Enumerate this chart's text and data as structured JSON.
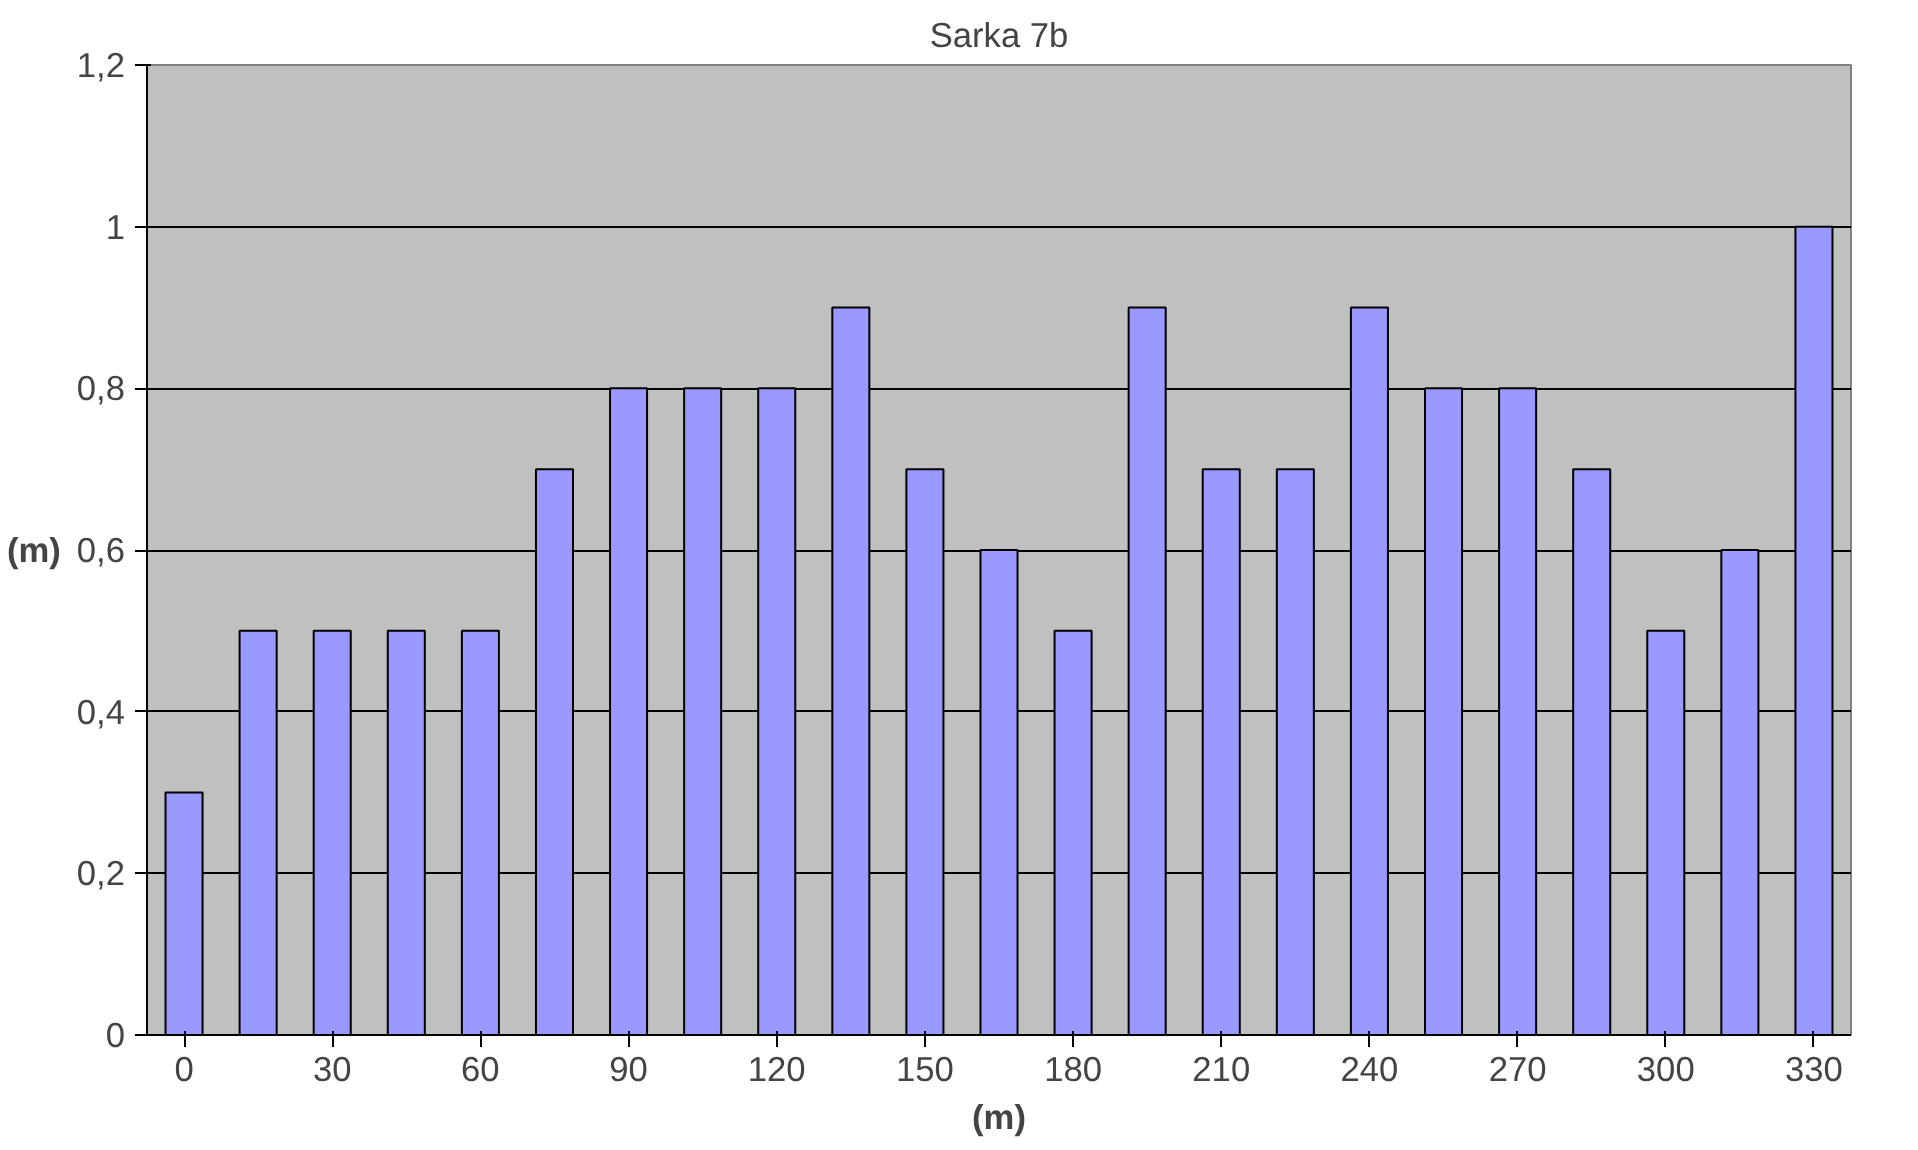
{
  "chart_data": {
    "type": "bar",
    "title": "Sarka 7b",
    "xlabel": "(m)",
    "ylabel": "(m)",
    "categories": [
      "0",
      null,
      "30",
      null,
      "60",
      null,
      "90",
      null,
      "120",
      null,
      "150",
      null,
      "180",
      null,
      "210",
      null,
      "240",
      null,
      "270",
      null,
      "300",
      null,
      "330"
    ],
    "values": [
      0.3,
      0.5,
      0.5,
      0.5,
      0.5,
      0.7,
      0.8,
      0.8,
      0.8,
      0.9,
      0.7,
      0.6,
      0.5,
      0.9,
      0.7,
      0.7,
      0.9,
      0.8,
      0.8,
      0.7,
      0.5,
      0.6,
      1.0
    ],
    "color": "#9999ff",
    "ylim": [
      0,
      1.2
    ],
    "yticks": [
      0,
      {
        "value": 0.2,
        "label": "0,2"
      },
      {
        "value": 0.4,
        "label": "0,4"
      },
      {
        "value": 0.6,
        "label": "0,6"
      },
      {
        "value": 0.8,
        "label": "0,8"
      },
      1,
      {
        "value": 1.2,
        "label": "1,2"
      }
    ],
    "grid": "y"
  }
}
